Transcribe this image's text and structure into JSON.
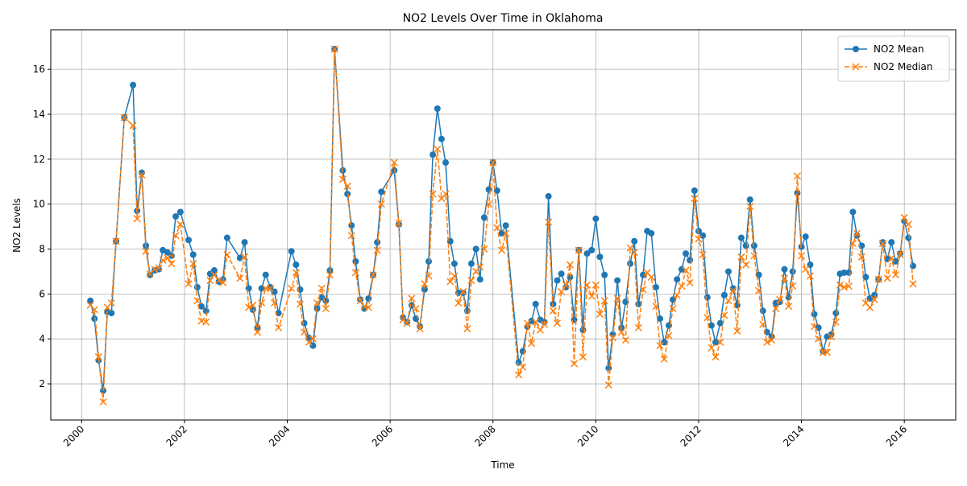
{
  "chart_data": {
    "type": "line",
    "title": "NO2 Levels Over Time in Oklahoma",
    "xlabel": "Time",
    "ylabel": "NO2 Levels",
    "x": [
      2000.17,
      2000.25,
      2000.33,
      2000.42,
      2000.5,
      2000.58,
      2000.67,
      2000.83,
      2001,
      2001.08,
      2001.17,
      2001.25,
      2001.33,
      2001.42,
      2001.5,
      2001.58,
      2001.67,
      2001.75,
      2001.83,
      2001.92,
      2002.08,
      2002.17,
      2002.25,
      2002.33,
      2002.42,
      2002.5,
      2002.58,
      2002.67,
      2002.75,
      2002.83,
      2003.08,
      2003.17,
      2003.25,
      2003.33,
      2003.42,
      2003.5,
      2003.58,
      2003.67,
      2003.75,
      2003.83,
      2004.08,
      2004.17,
      2004.25,
      2004.33,
      2004.42,
      2004.5,
      2004.58,
      2004.67,
      2004.75,
      2004.83,
      2004.92,
      2005.08,
      2005.17,
      2005.25,
      2005.33,
      2005.42,
      2005.5,
      2005.58,
      2005.67,
      2005.75,
      2005.83,
      2006.08,
      2006.17,
      2006.25,
      2006.33,
      2006.42,
      2006.5,
      2006.58,
      2006.67,
      2006.75,
      2006.83,
      2006.92,
      2007,
      2007.08,
      2007.17,
      2007.25,
      2007.33,
      2007.42,
      2007.5,
      2007.58,
      2007.67,
      2007.75,
      2007.83,
      2007.92,
      2008,
      2008.08,
      2008.17,
      2008.25,
      2008.5,
      2008.58,
      2008.67,
      2008.75,
      2008.83,
      2008.92,
      2009,
      2009.08,
      2009.17,
      2009.25,
      2009.33,
      2009.42,
      2009.5,
      2009.58,
      2009.67,
      2009.75,
      2009.83,
      2009.92,
      2010,
      2010.08,
      2010.17,
      2010.25,
      2010.33,
      2010.42,
      2010.5,
      2010.58,
      2010.67,
      2010.75,
      2010.83,
      2010.92,
      2011,
      2011.08,
      2011.17,
      2011.25,
      2011.33,
      2011.42,
      2011.5,
      2011.58,
      2011.67,
      2011.75,
      2011.83,
      2011.92,
      2012,
      2012.08,
      2012.17,
      2012.25,
      2012.33,
      2012.42,
      2012.5,
      2012.58,
      2012.67,
      2012.75,
      2012.83,
      2012.92,
      2013,
      2013.08,
      2013.17,
      2013.25,
      2013.33,
      2013.42,
      2013.5,
      2013.58,
      2013.67,
      2013.75,
      2013.83,
      2013.92,
      2014,
      2014.08,
      2014.17,
      2014.25,
      2014.33,
      2014.42,
      2014.5,
      2014.58,
      2014.67,
      2014.75,
      2014.83,
      2014.92,
      2015,
      2015.08,
      2015.17,
      2015.25,
      2015.33,
      2015.42,
      2015.5,
      2015.58,
      2015.67,
      2015.75,
      2015.83,
      2015.92,
      2016,
      2016.08,
      2016.17
    ],
    "series": [
      {
        "name": "NO2 Mean",
        "color": "#1f77b4",
        "marker": "o",
        "linestyle": "solid",
        "values": [
          5.7,
          4.9,
          3.05,
          1.7,
          5.2,
          5.15,
          8.35,
          13.85,
          15.3,
          9.7,
          11.4,
          8.15,
          6.85,
          7.05,
          7.1,
          7.95,
          7.85,
          7.7,
          9.45,
          9.65,
          8.4,
          7.75,
          6.3,
          5.45,
          5.25,
          6.9,
          7.05,
          6.55,
          6.65,
          8.5,
          7.6,
          8.3,
          6.25,
          5.3,
          4.5,
          6.25,
          6.85,
          6.3,
          6.1,
          5.15,
          7.9,
          7.3,
          6.2,
          4.7,
          4.05,
          3.7,
          5.35,
          5.85,
          5.7,
          7.05,
          16.9,
          11.5,
          10.45,
          9.05,
          7.45,
          5.75,
          5.35,
          5.8,
          6.85,
          8.3,
          10.55,
          11.5,
          9.1,
          4.95,
          4.75,
          5.5,
          4.9,
          4.55,
          6.2,
          7.45,
          12.2,
          14.25,
          12.9,
          11.85,
          8.35,
          7.35,
          6.05,
          6.05,
          5.25,
          7.35,
          8.0,
          6.65,
          9.4,
          10.65,
          11.85,
          10.6,
          8.7,
          9.05,
          2.95,
          3.45,
          4.55,
          4.8,
          5.55,
          4.85,
          4.75,
          10.35,
          5.55,
          6.6,
          6.9,
          6.3,
          6.75,
          4.85,
          7.95,
          4.4,
          7.8,
          7.95,
          9.35,
          7.65,
          6.85,
          2.7,
          4.2,
          6.6,
          4.5,
          5.65,
          7.35,
          8.35,
          5.55,
          6.85,
          8.8,
          8.7,
          6.3,
          4.9,
          3.85,
          4.6,
          5.75,
          6.65,
          7.1,
          7.8,
          7.5,
          10.6,
          8.8,
          8.6,
          5.85,
          4.6,
          3.85,
          4.7,
          5.95,
          7.0,
          6.25,
          5.5,
          8.5,
          8.15,
          10.2,
          8.15,
          6.85,
          5.25,
          4.3,
          4.1,
          5.6,
          5.65,
          7.1,
          5.85,
          7.0,
          10.5,
          8.1,
          8.55,
          7.3,
          5.1,
          4.5,
          3.45,
          4.1,
          4.2,
          5.15,
          6.9,
          6.95,
          6.95,
          9.65,
          8.6,
          8.15,
          6.75,
          5.8,
          5.95,
          6.65,
          8.3,
          7.55,
          8.3,
          7.45,
          7.8,
          9.25,
          8.5,
          7.25
        ]
      },
      {
        "name": "NO2 Median",
        "color": "#ff7f0e",
        "marker": "x",
        "linestyle": "dashed",
        "values": [
          5.5,
          5.3,
          3.2,
          1.2,
          5.4,
          5.6,
          8.35,
          13.85,
          13.5,
          9.35,
          11.3,
          7.9,
          6.9,
          7.1,
          7.15,
          7.5,
          7.6,
          7.35,
          8.6,
          9.1,
          6.45,
          7.35,
          5.7,
          4.8,
          4.75,
          6.6,
          6.85,
          6.6,
          6.5,
          7.75,
          6.7,
          7.65,
          5.4,
          5.5,
          4.3,
          5.6,
          6.25,
          6.25,
          5.6,
          4.5,
          6.25,
          6.95,
          5.55,
          4.3,
          3.85,
          4.0,
          5.6,
          6.25,
          5.35,
          6.85,
          16.9,
          11.1,
          10.8,
          8.6,
          6.95,
          5.7,
          5.45,
          5.4,
          6.85,
          7.95,
          10.0,
          11.85,
          9.15,
          4.85,
          4.7,
          5.8,
          5.35,
          4.45,
          6.45,
          6.8,
          10.45,
          12.45,
          10.25,
          10.45,
          6.55,
          6.8,
          5.6,
          6.1,
          4.45,
          6.6,
          7.0,
          7.2,
          8.0,
          10.0,
          11.85,
          8.95,
          7.95,
          8.7,
          2.4,
          2.75,
          4.7,
          3.8,
          4.75,
          4.4,
          4.65,
          9.2,
          5.25,
          4.7,
          6.1,
          6.4,
          7.3,
          2.9,
          7.95,
          3.2,
          6.4,
          5.9,
          6.4,
          5.1,
          5.7,
          1.95,
          4.05,
          5.8,
          4.3,
          3.95,
          8.05,
          7.85,
          4.5,
          6.2,
          6.95,
          6.75,
          5.45,
          3.7,
          3.1,
          4.15,
          5.35,
          5.95,
          6.35,
          7.05,
          6.5,
          10.25,
          8.45,
          7.75,
          4.95,
          3.6,
          3.2,
          3.85,
          5.05,
          5.7,
          6.15,
          4.35,
          7.65,
          7.3,
          9.9,
          7.7,
          6.15,
          4.65,
          3.85,
          3.95,
          5.35,
          5.75,
          6.7,
          5.45,
          6.35,
          11.25,
          7.7,
          7.1,
          6.8,
          4.55,
          4.0,
          3.4,
          3.4,
          4.1,
          4.75,
          6.4,
          6.3,
          6.35,
          8.25,
          8.7,
          7.65,
          5.6,
          5.4,
          5.75,
          6.65,
          8.25,
          6.7,
          7.6,
          6.85,
          7.75,
          9.4,
          9.1,
          6.45
        ]
      }
    ],
    "xlim": [
      1999.4,
      2017.0
    ],
    "ylim": [
      0.39,
      17.76
    ],
    "xticks": [
      2000,
      2002,
      2004,
      2006,
      2008,
      2010,
      2012,
      2014,
      2016
    ],
    "yticks": [
      2,
      4,
      6,
      8,
      10,
      12,
      14,
      16
    ],
    "grid": true,
    "legend": "upper right"
  }
}
